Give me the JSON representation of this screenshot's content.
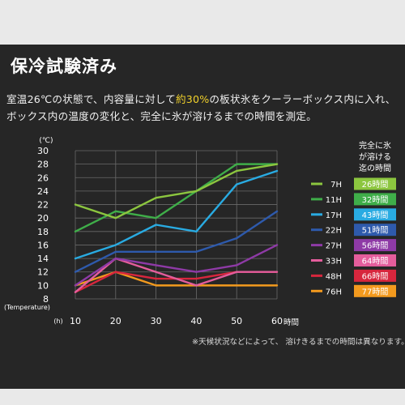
{
  "page": {
    "title": "保冷試験済み",
    "desc_line1_a": "室温26℃の状態で、内容量に対して",
    "desc_line1_hl": "約30%",
    "desc_line1_b": "の板状氷をクーラーボックス内に入れ、",
    "desc_line2": "ボックス内の温度の変化と、完全に氷が溶けるまでの時間を測定。",
    "footnote": "※天候状況などによって、 溶けきるまでの時間は異なります。",
    "legend_header": [
      "完全に氷",
      "が溶ける",
      "迄の時間"
    ]
  },
  "colors": {
    "background": "#262626",
    "highlight": "#f2d22b",
    "grid": "#6a6a6a"
  },
  "chart_data": {
    "type": "line",
    "x": [
      10,
      20,
      30,
      40,
      50,
      60
    ],
    "xlabel_unit": "(h)",
    "xlabel": "時間",
    "ylabel_unit": "(℃)",
    "ylabel": "(Temperature)",
    "xlim": [
      10,
      60
    ],
    "ylim": [
      8,
      30
    ],
    "yticks": [
      8,
      10,
      12,
      14,
      16,
      18,
      20,
      22,
      24,
      26,
      28,
      30
    ],
    "grid": true,
    "legend_position": "right",
    "series": [
      {
        "name": "7H",
        "melt": "26時間",
        "color": "#8cc63f",
        "values": [
          22,
          20,
          23,
          24,
          27,
          28
        ]
      },
      {
        "name": "11H",
        "melt": "32時間",
        "color": "#3fae49",
        "values": [
          18,
          21,
          20,
          24,
          28,
          28
        ]
      },
      {
        "name": "17H",
        "melt": "43時間",
        "color": "#29abe2",
        "values": [
          14,
          16,
          19,
          18,
          25,
          27
        ]
      },
      {
        "name": "22H",
        "melt": "51時間",
        "color": "#2e5aac",
        "values": [
          12,
          15,
          15,
          15,
          17,
          21
        ]
      },
      {
        "name": "27H",
        "melt": "56時間",
        "color": "#8e3aa6",
        "values": [
          10,
          14,
          13,
          12,
          13,
          16
        ]
      },
      {
        "name": "33H",
        "melt": "64時間",
        "color": "#e45d9c",
        "values": [
          9,
          14,
          12,
          10,
          12,
          12
        ]
      },
      {
        "name": "48H",
        "melt": "66時間",
        "color": "#d7263d",
        "values": [
          9,
          12,
          11,
          11,
          12,
          12
        ]
      },
      {
        "name": "76H",
        "melt": "77時間",
        "color": "#f39a1e",
        "values": [
          10,
          12,
          10,
          10,
          10,
          10
        ]
      }
    ]
  }
}
